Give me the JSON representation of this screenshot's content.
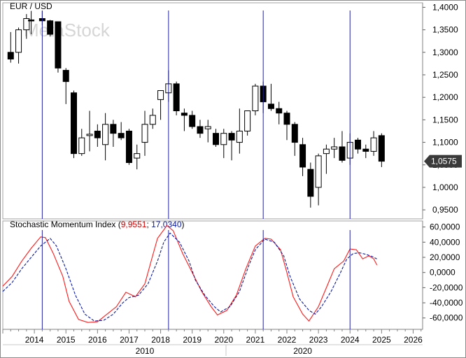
{
  "chart_data": [
    {
      "type": "candlestick",
      "title": "EUR / USD",
      "watermark": "MetaStock",
      "last_value_label": "1,0575",
      "ylim": [
        0.93,
        1.41
      ],
      "yticks": [
        "1,4000",
        "1,3500",
        "1,3000",
        "1,2500",
        "1,2000",
        "1,1500",
        "1,1000",
        "1,0500",
        "1,0000",
        "0,9500"
      ],
      "ytick_values": [
        1.4,
        1.35,
        1.3,
        1.25,
        1.2,
        1.15,
        1.1,
        1.05,
        1.0,
        0.95
      ],
      "bars": [
        [
          2013.25,
          1.3,
          1.345,
          1.277,
          1.285
        ],
        [
          2013.5,
          1.3,
          1.355,
          1.275,
          1.35
        ],
        [
          2013.75,
          1.35,
          1.385,
          1.33,
          1.375
        ],
        [
          2013.9,
          1.372,
          1.392,
          1.34,
          1.37
        ],
        [
          2014.25,
          1.375,
          1.392,
          1.36,
          1.37
        ],
        [
          2014.5,
          1.37,
          1.372,
          1.335,
          1.34
        ],
        [
          2014.75,
          1.368,
          1.368,
          1.255,
          1.265
        ],
        [
          2015.0,
          1.26,
          1.265,
          1.185,
          1.235
        ],
        [
          2015.25,
          1.21,
          1.215,
          1.065,
          1.075
        ],
        [
          2015.5,
          1.075,
          1.13,
          1.07,
          1.11
        ],
        [
          2015.75,
          1.115,
          1.17,
          1.08,
          1.118
        ],
        [
          2016.0,
          1.125,
          1.14,
          1.09,
          1.11
        ],
        [
          2016.25,
          1.095,
          1.165,
          1.06,
          1.14
        ],
        [
          2016.5,
          1.14,
          1.15,
          1.09,
          1.12
        ],
        [
          2016.75,
          1.12,
          1.145,
          1.105,
          1.11
        ],
        [
          2017.0,
          1.125,
          1.13,
          1.05,
          1.055
        ],
        [
          2017.25,
          1.065,
          1.095,
          1.04,
          1.075
        ],
        [
          2017.5,
          1.1,
          1.17,
          1.07,
          1.14
        ],
        [
          2017.75,
          1.14,
          1.175,
          1.13,
          1.16
        ],
        [
          2018.0,
          1.195,
          1.21,
          1.15,
          1.215
        ],
        [
          2018.25,
          1.21,
          1.26,
          1.19,
          1.23
        ],
        [
          2018.5,
          1.23,
          1.235,
          1.16,
          1.17
        ],
        [
          2018.75,
          1.165,
          1.175,
          1.125,
          1.16
        ],
        [
          2019.0,
          1.16,
          1.17,
          1.13,
          1.135
        ],
        [
          2019.25,
          1.135,
          1.15,
          1.11,
          1.12
        ],
        [
          2019.5,
          1.13,
          1.15,
          1.1,
          1.135
        ],
        [
          2019.75,
          1.12,
          1.13,
          1.09,
          1.095
        ],
        [
          2020.0,
          1.095,
          1.13,
          1.065,
          1.12
        ],
        [
          2020.25,
          1.12,
          1.125,
          1.06,
          1.105
        ],
        [
          2020.5,
          1.1,
          1.175,
          1.075,
          1.125
        ],
        [
          2020.75,
          1.125,
          1.17,
          1.115,
          1.17
        ],
        [
          2021.0,
          1.17,
          1.23,
          1.16,
          1.225
        ],
        [
          2021.25,
          1.225,
          1.235,
          1.165,
          1.19
        ],
        [
          2021.5,
          1.185,
          1.23,
          1.17,
          1.175
        ],
        [
          2021.75,
          1.175,
          1.19,
          1.14,
          1.165
        ],
        [
          2022.0,
          1.165,
          1.17,
          1.105,
          1.14
        ],
        [
          2022.25,
          1.14,
          1.145,
          1.07,
          1.1
        ],
        [
          2022.5,
          1.095,
          1.11,
          1.025,
          1.045
        ],
        [
          2022.75,
          1.04,
          1.055,
          0.955,
          0.98
        ],
        [
          2023.0,
          1.0,
          1.075,
          0.96,
          1.07
        ],
        [
          2023.25,
          1.075,
          1.095,
          1.03,
          1.085
        ],
        [
          2023.5,
          1.085,
          1.11,
          1.065,
          1.09
        ],
        [
          2023.75,
          1.09,
          1.125,
          1.055,
          1.06
        ],
        [
          2024.0,
          1.065,
          1.12,
          1.05,
          1.1
        ],
        [
          2024.25,
          1.105,
          1.11,
          1.075,
          1.085
        ],
        [
          2024.5,
          1.085,
          1.095,
          1.065,
          1.08
        ],
        [
          2024.75,
          1.08,
          1.125,
          1.07,
          1.11
        ],
        [
          2025.0,
          1.115,
          1.12,
          1.045,
          1.058
        ]
      ]
    },
    {
      "type": "line",
      "title": "Stochastic Momentum Index",
      "values_label": [
        "9,9551",
        "17,0340"
      ],
      "ylim": [
        -75,
        68
      ],
      "yticks": [
        "60,0000",
        "40,0000",
        "20,0000",
        "0,0000",
        "-20,0000",
        "-40,0000",
        "-60,0000"
      ],
      "ytick_values": [
        60,
        40,
        20,
        0,
        -20,
        -40,
        -60
      ],
      "series": [
        {
          "color": "#ff1a1a",
          "dash": "",
          "points": [
            [
              2013.0,
              -18
            ],
            [
              2013.3,
              -5
            ],
            [
              2013.6,
              15
            ],
            [
              2013.9,
              32
            ],
            [
              2014.2,
              47
            ],
            [
              2014.35,
              46
            ],
            [
              2014.6,
              25
            ],
            [
              2014.9,
              -5
            ],
            [
              2015.1,
              -38
            ],
            [
              2015.4,
              -62
            ],
            [
              2015.7,
              -66
            ],
            [
              2016.0,
              -65
            ],
            [
              2016.3,
              -55
            ],
            [
              2016.6,
              -45
            ],
            [
              2016.9,
              -26
            ],
            [
              2017.2,
              -32
            ],
            [
              2017.5,
              -15
            ],
            [
              2017.7,
              15
            ],
            [
              2017.9,
              45
            ],
            [
              2018.2,
              62
            ],
            [
              2018.4,
              55
            ],
            [
              2018.7,
              25
            ],
            [
              2019.0,
              0
            ],
            [
              2019.3,
              -25
            ],
            [
              2019.6,
              -45
            ],
            [
              2019.8,
              -56
            ],
            [
              2020.1,
              -50
            ],
            [
              2020.4,
              -30
            ],
            [
              2020.7,
              5
            ],
            [
              2021.0,
              35
            ],
            [
              2021.3,
              45
            ],
            [
              2021.5,
              44
            ],
            [
              2021.8,
              30
            ],
            [
              2022.0,
              0
            ],
            [
              2022.2,
              -32
            ],
            [
              2022.5,
              -55
            ],
            [
              2022.7,
              -64
            ],
            [
              2023.0,
              -45
            ],
            [
              2023.3,
              -15
            ],
            [
              2023.5,
              5
            ],
            [
              2023.8,
              15
            ],
            [
              2024.0,
              31
            ],
            [
              2024.2,
              30
            ],
            [
              2024.4,
              18
            ],
            [
              2024.6,
              22
            ],
            [
              2024.75,
              18
            ],
            [
              2024.85,
              10
            ]
          ]
        },
        {
          "color": "#0a1aa0",
          "dash": "4,2",
          "points": [
            [
              2013.0,
              -25
            ],
            [
              2013.3,
              -13
            ],
            [
              2013.6,
              5
            ],
            [
              2013.9,
              20
            ],
            [
              2014.2,
              35
            ],
            [
              2014.5,
              45
            ],
            [
              2014.7,
              35
            ],
            [
              2015.0,
              5
            ],
            [
              2015.3,
              -30
            ],
            [
              2015.6,
              -55
            ],
            [
              2015.9,
              -64
            ],
            [
              2016.2,
              -63
            ],
            [
              2016.5,
              -55
            ],
            [
              2016.8,
              -40
            ],
            [
              2017.0,
              -33
            ],
            [
              2017.3,
              -30
            ],
            [
              2017.6,
              -15
            ],
            [
              2017.9,
              15
            ],
            [
              2018.1,
              40
            ],
            [
              2018.3,
              52
            ],
            [
              2018.6,
              40
            ],
            [
              2018.9,
              15
            ],
            [
              2019.1,
              -10
            ],
            [
              2019.4,
              -30
            ],
            [
              2019.7,
              -45
            ],
            [
              2019.9,
              -52
            ],
            [
              2020.2,
              -45
            ],
            [
              2020.5,
              -25
            ],
            [
              2020.8,
              10
            ],
            [
              2021.0,
              30
            ],
            [
              2021.3,
              44
            ],
            [
              2021.6,
              40
            ],
            [
              2021.9,
              22
            ],
            [
              2022.1,
              -5
            ],
            [
              2022.4,
              -35
            ],
            [
              2022.7,
              -50
            ],
            [
              2022.9,
              -55
            ],
            [
              2023.1,
              -45
            ],
            [
              2023.4,
              -25
            ],
            [
              2023.7,
              0
            ],
            [
              2023.9,
              18
            ],
            [
              2024.1,
              25
            ],
            [
              2024.3,
              26
            ],
            [
              2024.5,
              24
            ],
            [
              2024.7,
              21
            ],
            [
              2024.85,
              18
            ]
          ]
        }
      ]
    }
  ],
  "vertical_markers": [
    2014.25,
    2018.25,
    2021.25,
    2024.0
  ],
  "x_axis": {
    "year_labels": [
      "2014",
      "2015",
      "2016",
      "2017",
      "2018",
      "2019",
      "2020",
      "2021",
      "2022",
      "2023",
      "2024",
      "2025",
      "2026"
    ],
    "year_values": [
      2014,
      2015,
      2016,
      2017,
      2018,
      2019,
      2020,
      2021,
      2022,
      2023,
      2024,
      2025,
      2026
    ],
    "decade_labels": [
      "2010",
      "2020"
    ],
    "decade_values": [
      2017.5,
      2022.5
    ],
    "xlim": [
      2013.0,
      2026.3
    ]
  }
}
